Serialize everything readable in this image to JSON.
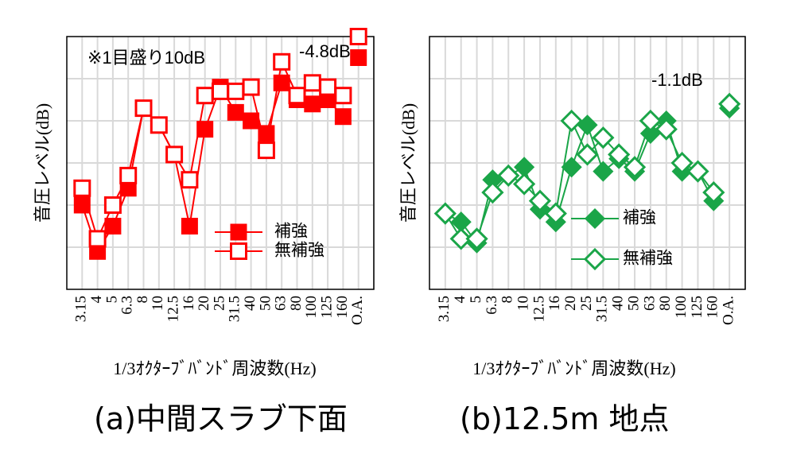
{
  "chart_data": [
    {
      "type": "line",
      "caption": "(a)中間スラブ下面",
      "note": "※1目盛り10dB",
      "annotation": "-4.8dB",
      "xlabel": "1/3ｵｸﾀｰﾌﾞﾊﾞﾝﾄﾞ周波数(Hz)",
      "ylabel": "音圧レベル(dB)",
      "categories": [
        "3.15",
        "4",
        "5",
        "6.3",
        "8",
        "10",
        "12.5",
        "16",
        "20",
        "25",
        "31.5",
        "40",
        "50",
        "63",
        "80",
        "100",
        "125",
        "160",
        "O.A."
      ],
      "ylim": [
        0,
        60
      ],
      "grid": true,
      "legend_position": "bottom-right",
      "color": "#ff0000",
      "series": [
        {
          "name": "補強",
          "marker": "filled-square",
          "values": [
            20,
            9,
            15,
            24,
            43,
            39,
            32,
            15,
            38,
            48,
            42,
            40,
            37,
            49,
            45,
            44,
            45,
            41,
            55
          ]
        },
        {
          "name": "無補強",
          "marker": "open-square",
          "values": [
            24,
            12,
            20,
            27,
            43,
            39,
            32,
            26,
            46,
            47,
            47,
            48,
            33,
            54,
            46,
            49,
            48,
            46,
            60
          ]
        }
      ]
    },
    {
      "type": "line",
      "caption": "(b)12.5m 地点",
      "annotation": "-1.1dB",
      "xlabel": "1/3ｵｸﾀｰﾌﾞﾊﾞﾝﾄﾞ周波数(Hz)",
      "ylabel": "音圧レベル(dB)",
      "categories": [
        "3.15",
        "4",
        "5",
        "6.3",
        "8",
        "10",
        "12.5",
        "16",
        "20",
        "25",
        "31.5",
        "40",
        "50",
        "63",
        "80",
        "100",
        "125",
        "160",
        "O.A."
      ],
      "ylim": [
        0,
        60
      ],
      "grid": true,
      "legend_position": "bottom-right",
      "color": "#1aa548",
      "series": [
        {
          "name": "補強",
          "marker": "filled-diamond",
          "values": [
            18,
            16,
            11,
            26,
            27,
            29,
            19,
            16,
            29,
            39,
            28,
            31,
            28,
            37,
            40,
            28,
            28,
            21,
            43
          ]
        },
        {
          "name": "無補強",
          "marker": "open-diamond",
          "values": [
            18,
            12,
            12,
            23,
            27,
            25,
            21,
            18,
            40,
            32,
            36,
            32,
            29,
            40,
            38,
            30,
            28,
            23,
            44
          ]
        }
      ]
    }
  ]
}
